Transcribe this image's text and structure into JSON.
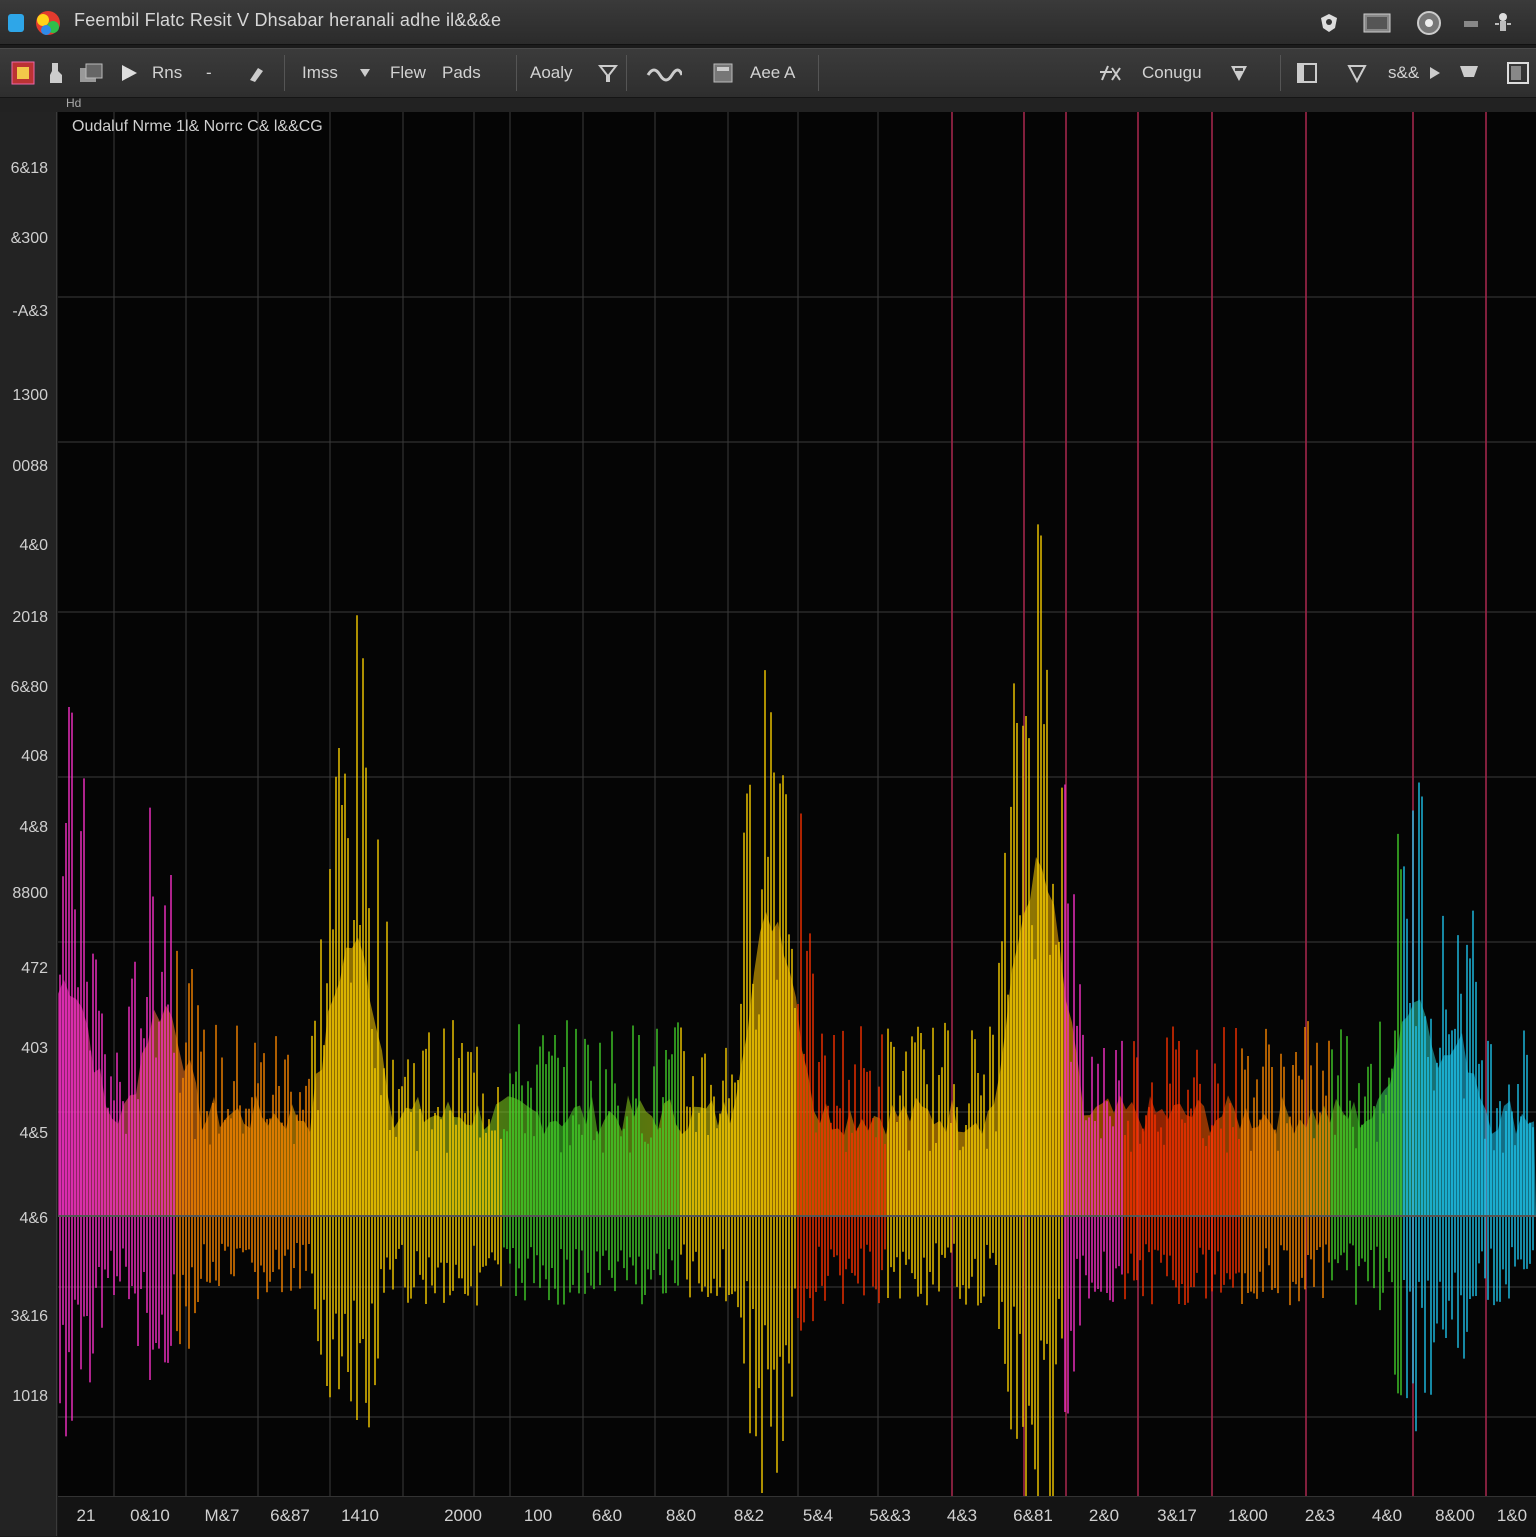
{
  "window": {
    "title": "Feembil Flatc Resit V Dhsabar heranali adhe il&&&e"
  },
  "toolbar": {
    "run_label": "Rns",
    "dash_label": "-",
    "imss_label": "Imss",
    "flew_label": "Flew",
    "pads_label": "Pads",
    "apply_label": "Aoaly",
    "area_label": "Aee A",
    "config_label": "Conugu",
    "scale_label": "s&&"
  },
  "strip": {
    "label": "Hd"
  },
  "plot": {
    "title": "Oudaluf Nrme 1l& Norrc C& l&&CG",
    "y_tick_labels": [
      "6&18",
      "&300",
      "-A&3",
      "1300",
      "0088",
      "4&0",
      "2018",
      "6&80",
      "408",
      "4&8",
      "8800",
      "472",
      "403",
      "4&5",
      "4&6",
      "3&16",
      "1018"
    ],
    "x_tick_labels": [
      "21",
      "0&10",
      "M&7",
      "6&87",
      "1410",
      "2000",
      "100",
      "6&0",
      "8&0",
      "8&2",
      "5&4",
      "5&&3",
      "4&3",
      "6&81",
      "2&0",
      "3&17",
      "1&00",
      "2&3",
      "4&0",
      "8&00",
      "1&0"
    ]
  },
  "colors": {
    "magenta": "#ff33cc",
    "yellow": "#ffd200",
    "orange": "#ff8a00",
    "green": "#44d42a",
    "red": "#ff3300",
    "cyan": "#1ec8f0",
    "grid": "#3a3a3a",
    "grid_red": "#a0264a"
  },
  "icons": [
    "app-logo-icon",
    "shield-icon",
    "screen-icon",
    "record-icon",
    "minimize-icon",
    "pin-icon",
    "grid-icon",
    "play-icon",
    "tool-icon",
    "dropdown-icon",
    "filter-icon",
    "wave-icon",
    "layer-icon",
    "function-icon",
    "settings-icon",
    "arrow-icon",
    "panel-icon"
  ]
}
